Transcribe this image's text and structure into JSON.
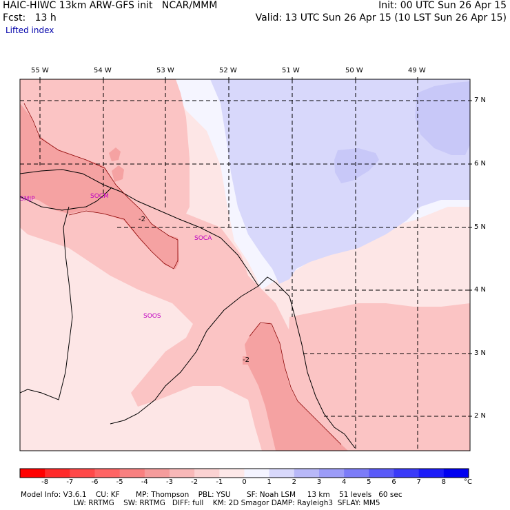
{
  "header": {
    "left_line1": "HAIC-HIWC 13km ARW-GFS init   NCAR/MMM",
    "left_line2": "Fcst:   13 h",
    "field_name": "Lifted index",
    "right_line1": "Init: 00 UTC Sun 26 Apr 15",
    "right_line2": "Valid: 13 UTC Sun 26 Apr 15 (10 LST Sun 26 Apr 15)"
  },
  "map": {
    "longitude_labels": [
      "55 W",
      "54 W",
      "53 W",
      "52 W",
      "51 W",
      "50 W",
      "49 W"
    ],
    "latitude_labels": [
      "7 N",
      "6 N",
      "5 N",
      "4 N",
      "3 N",
      "2 N"
    ],
    "contour_labels": [
      "-2",
      "-2"
    ],
    "station_labels": [
      "SMJP",
      "SOCM",
      "SOCA",
      "SOOS"
    ],
    "colors": {
      "light_pink": "#fde6e6",
      "pink": "#fbc4c4",
      "salmon": "#f5a2a2",
      "pale_white": "#f5f5ff",
      "lavender": "#d8d8fb",
      "station_label": "#c000c0"
    }
  },
  "colorbar": {
    "tick_labels": [
      "-8",
      "-7",
      "-6",
      "-5",
      "-4",
      "-3",
      "-2",
      "-1",
      "0",
      "1",
      "2",
      "3",
      "4",
      "5",
      "6",
      "7",
      "8"
    ],
    "unit": "°C",
    "colors": [
      "#ff0000",
      "#ff2a2a",
      "#ff4848",
      "#ff6464",
      "#f88080",
      "#f59c9c",
      "#f8b8b8",
      "#fbd2d2",
      "#fde8e8",
      "#f4f4ff",
      "#d8d8fb",
      "#b8b8f8",
      "#9c9cf8",
      "#7c7cf8",
      "#5a5af8",
      "#3a3af8",
      "#1c1cf8",
      "#0000f0"
    ]
  },
  "model_info": {
    "line1": "Model Info: V3.6.1    CU: KF       MP: Thompson    PBL: YSU       SF: Noah LSM     13 km    51 levels   60 sec",
    "line2": "                       LW: RRTMG    SW: RRTMG   DIFF: full    KM: 2D Smagor DAMP: Rayleigh3  SFLAY: MM5"
  }
}
